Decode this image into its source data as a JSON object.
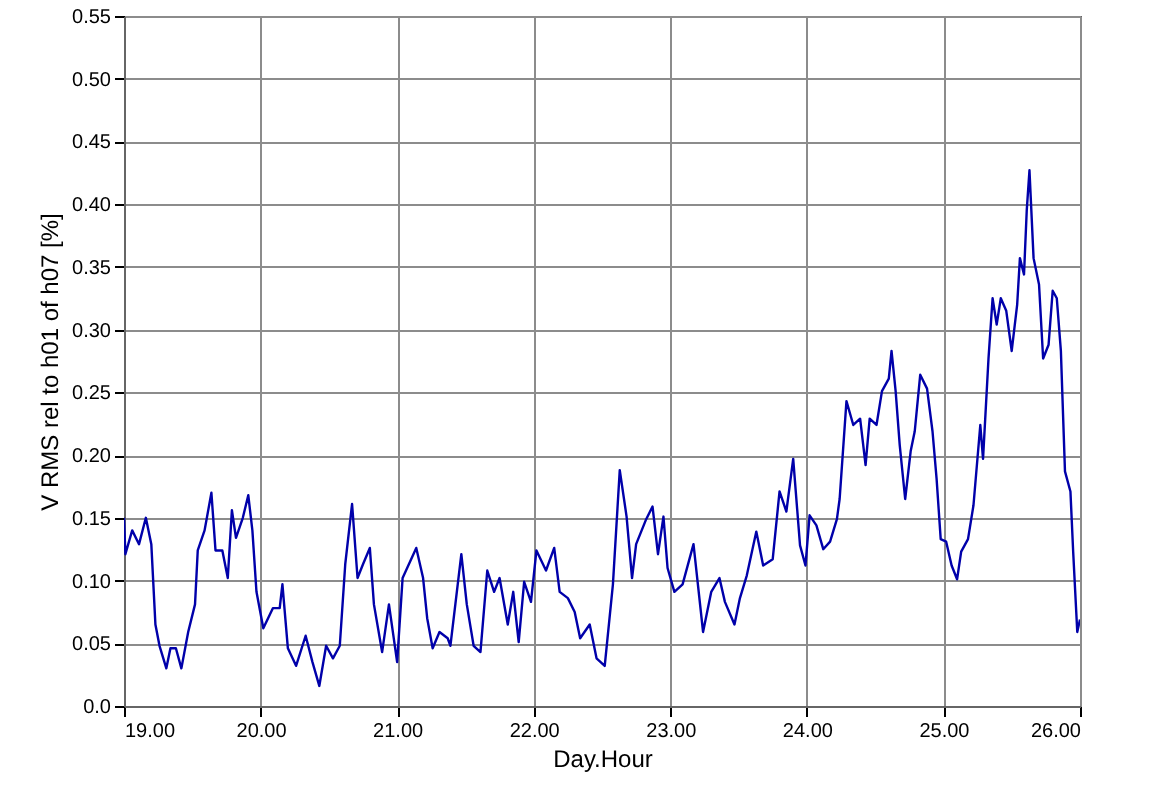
{
  "chart_data": {
    "type": "line",
    "xlabel": "Day.Hour",
    "ylabel": "V RMS rel to h01 of h07 [%]",
    "grid": true,
    "marker": "none",
    "line_style": "solid",
    "xlim": [
      19,
      26
    ],
    "ylim": [
      0,
      0.55
    ],
    "xticks": [
      {
        "value": 19,
        "label": "19.00"
      },
      {
        "value": 20,
        "label": "20.00"
      },
      {
        "value": 21,
        "label": "21.00"
      },
      {
        "value": 22,
        "label": "22.00"
      },
      {
        "value": 23,
        "label": "23.00"
      },
      {
        "value": 24,
        "label": "24.00"
      },
      {
        "value": 25,
        "label": "25.00"
      },
      {
        "value": 26,
        "label": "26.00"
      }
    ],
    "yticks": [
      {
        "value": 0,
        "label": "0.0"
      },
      0.05,
      {
        "value": 0.1,
        "label": "0.10"
      },
      0.15,
      {
        "value": 0.2,
        "label": "0.20"
      },
      0.25,
      {
        "value": 0.3,
        "label": "0.30"
      },
      0.35,
      {
        "value": 0.4,
        "label": "0.40"
      },
      0.45,
      {
        "value": 0.5,
        "label": "0.50"
      },
      0.55
    ],
    "series": [
      {
        "color": "#0000aa",
        "x": [
          19.0,
          19.01,
          19.06,
          19.11,
          19.16,
          19.2,
          19.23,
          19.26,
          19.31,
          19.34,
          19.38,
          19.42,
          19.47,
          19.52,
          19.54,
          19.59,
          19.64,
          19.67,
          19.72,
          19.76,
          19.79,
          19.82,
          19.87,
          19.91,
          19.94,
          19.97,
          20.02,
          20.09,
          20.14,
          20.16,
          20.2,
          20.26,
          20.33,
          20.38,
          20.43,
          20.48,
          20.53,
          20.58,
          20.62,
          20.67,
          20.71,
          20.75,
          20.8,
          20.83,
          20.89,
          20.94,
          21.0,
          21.04,
          21.14,
          21.19,
          21.22,
          21.26,
          21.31,
          21.37,
          21.39,
          21.47,
          21.51,
          21.56,
          21.61,
          21.66,
          21.71,
          21.75,
          21.81,
          21.85,
          21.89,
          21.93,
          21.98,
          22.02,
          22.09,
          22.15,
          22.19,
          22.25,
          22.3,
          22.34,
          22.41,
          22.46,
          22.52,
          22.58,
          22.63,
          22.68,
          22.72,
          22.75,
          22.82,
          22.87,
          22.91,
          22.95,
          22.98,
          23.03,
          23.09,
          23.17,
          23.24,
          23.3,
          23.36,
          23.4,
          23.47,
          23.51,
          23.56,
          23.63,
          23.68,
          23.75,
          23.8,
          23.85,
          23.9,
          23.95,
          23.99,
          24.02,
          24.07,
          24.12,
          24.17,
          24.22,
          24.24,
          24.29,
          24.34,
          24.39,
          24.43,
          24.46,
          24.51,
          24.55,
          24.6,
          24.62,
          24.65,
          24.68,
          24.72,
          24.76,
          24.79,
          24.83,
          24.88,
          24.92,
          24.95,
          24.98,
          25.02,
          25.06,
          25.1,
          25.13,
          25.18,
          25.22,
          25.27,
          25.29,
          25.33,
          25.36,
          25.39,
          25.42,
          25.46,
          25.5,
          25.54,
          25.56,
          25.59,
          25.61,
          25.63,
          25.66,
          25.7,
          25.73,
          25.77,
          25.8,
          25.83,
          25.86,
          25.89,
          25.93,
          25.95,
          25.98,
          26.0
        ],
        "values": [
          0.15,
          0.121,
          0.14,
          0.129,
          0.15,
          0.129,
          0.065,
          0.048,
          0.03,
          0.046,
          0.046,
          0.03,
          0.059,
          0.081,
          0.124,
          0.14,
          0.17,
          0.124,
          0.124,
          0.102,
          0.156,
          0.134,
          0.15,
          0.168,
          0.14,
          0.091,
          0.062,
          0.078,
          0.078,
          0.097,
          0.046,
          0.032,
          0.056,
          0.035,
          0.016,
          0.048,
          0.038,
          0.048,
          0.113,
          0.161,
          0.102,
          0.113,
          0.126,
          0.081,
          0.043,
          0.081,
          0.035,
          0.102,
          0.126,
          0.102,
          0.07,
          0.046,
          0.059,
          0.054,
          0.048,
          0.121,
          0.081,
          0.048,
          0.043,
          0.108,
          0.091,
          0.102,
          0.065,
          0.091,
          0.051,
          0.099,
          0.083,
          0.124,
          0.108,
          0.126,
          0.091,
          0.086,
          0.075,
          0.054,
          0.065,
          0.038,
          0.032,
          0.097,
          0.188,
          0.151,
          0.102,
          0.129,
          0.148,
          0.159,
          0.121,
          0.151,
          0.11,
          0.091,
          0.097,
          0.129,
          0.059,
          0.091,
          0.102,
          0.083,
          0.065,
          0.086,
          0.104,
          0.139,
          0.112,
          0.117,
          0.171,
          0.155,
          0.197,
          0.128,
          0.112,
          0.152,
          0.144,
          0.125,
          0.131,
          0.149,
          0.165,
          0.243,
          0.224,
          0.229,
          0.192,
          0.229,
          0.224,
          0.251,
          0.261,
          0.283,
          0.251,
          0.208,
          0.165,
          0.203,
          0.219,
          0.264,
          0.253,
          0.219,
          0.181,
          0.133,
          0.131,
          0.112,
          0.101,
          0.123,
          0.133,
          0.16,
          0.224,
          0.197,
          0.277,
          0.325,
          0.304,
          0.325,
          0.315,
          0.283,
          0.32,
          0.357,
          0.344,
          0.395,
          0.427,
          0.357,
          0.336,
          0.277,
          0.288,
          0.331,
          0.325,
          0.283,
          0.187,
          0.171,
          0.123,
          0.059,
          0.069
        ]
      }
    ]
  }
}
